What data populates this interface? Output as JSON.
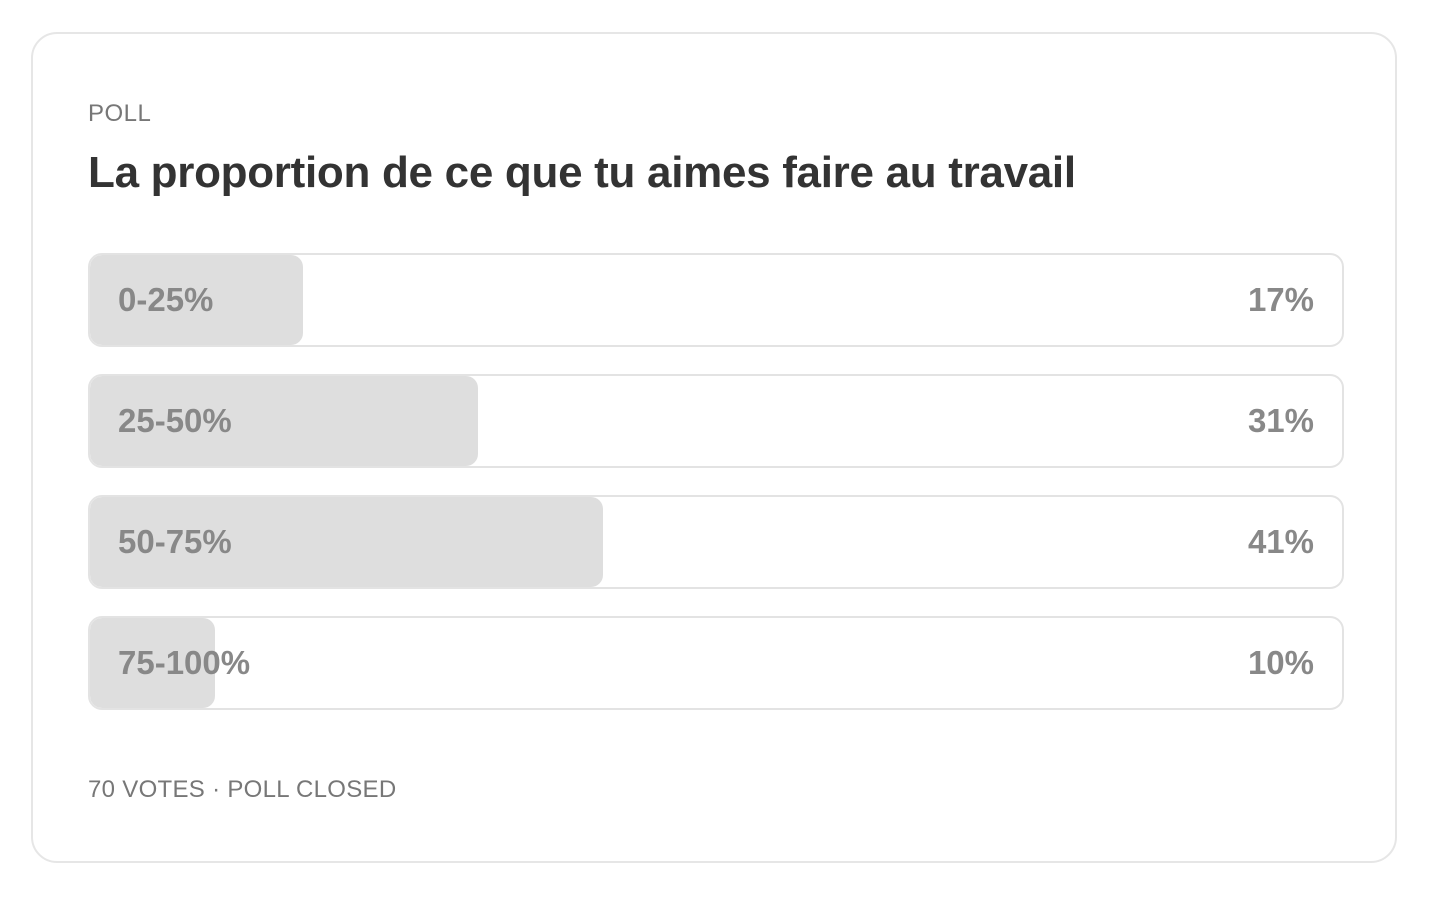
{
  "poll": {
    "kicker": "POLL",
    "question": "La proportion de ce que tu aimes faire au travail",
    "options": [
      {
        "label": "0-25%",
        "percent_text": "17%",
        "share": 0.17
      },
      {
        "label": "25-50%",
        "percent_text": "31%",
        "share": 0.31
      },
      {
        "label": "50-75%",
        "percent_text": "41%",
        "share": 0.41
      },
      {
        "label": "75-100%",
        "percent_text": "10%",
        "share": 0.1
      }
    ],
    "footer": "70 VOTES · POLL CLOSED"
  },
  "colors": {
    "bar_fill": "#dedede",
    "option_text": "#888888",
    "title_text": "#333333",
    "meta_text": "#777777"
  }
}
